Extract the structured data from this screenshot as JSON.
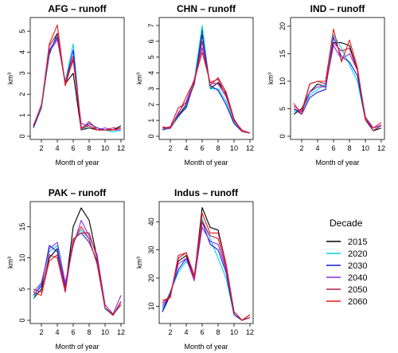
{
  "legend": {
    "title": "Decade",
    "entries": [
      {
        "name": "2015",
        "color": "#000000"
      },
      {
        "name": "2020",
        "color": "#00d5e6"
      },
      {
        "name": "2030",
        "color": "#1a1ad6"
      },
      {
        "name": "2040",
        "color": "#8a2be2"
      },
      {
        "name": "2050",
        "color": "#b31a4d"
      },
      {
        "name": "2060",
        "color": "#e61a1a"
      }
    ]
  },
  "chart_data": [
    {
      "type": "line",
      "title": "AFG – runoff",
      "xlabel": "Month of year",
      "ylabel": "km³",
      "x": [
        1,
        2,
        3,
        4,
        5,
        6,
        7,
        8,
        9,
        10,
        11,
        12
      ],
      "xlim": [
        1,
        12
      ],
      "xticks": [
        2,
        4,
        6,
        8,
        10,
        12
      ],
      "ylim": [
        0,
        5.5
      ],
      "yticks": [
        0,
        1,
        2,
        3,
        4,
        5
      ],
      "series": [
        {
          "name": "2015",
          "values": [
            0.5,
            1.4,
            3.9,
            4.9,
            2.5,
            3.0,
            0.3,
            0.4,
            0.3,
            0.3,
            0.3,
            0.5
          ]
        },
        {
          "name": "2020",
          "values": [
            0.4,
            1.3,
            4.0,
            4.8,
            2.6,
            4.4,
            0.3,
            0.5,
            0.3,
            0.3,
            0.2,
            0.3
          ]
        },
        {
          "name": "2030",
          "values": [
            0.4,
            1.4,
            4.1,
            4.7,
            2.5,
            4.1,
            0.4,
            0.6,
            0.4,
            0.3,
            0.3,
            0.4
          ]
        },
        {
          "name": "2040",
          "values": [
            0.5,
            1.5,
            4.0,
            4.6,
            2.6,
            3.6,
            0.6,
            0.5,
            0.3,
            0.4,
            0.3,
            0.3
          ]
        },
        {
          "name": "2050",
          "values": [
            0.5,
            1.4,
            4.3,
            4.9,
            2.5,
            3.8,
            0.3,
            0.7,
            0.3,
            0.3,
            0.4,
            0.4
          ]
        },
        {
          "name": "2060",
          "values": [
            0.5,
            1.4,
            4.4,
            5.3,
            2.4,
            3.7,
            0.4,
            0.5,
            0.3,
            0.3,
            0.3,
            0.4
          ]
        }
      ]
    },
    {
      "type": "line",
      "title": "CHN – runoff",
      "xlabel": "Month of year",
      "ylabel": "km³",
      "x": [
        1,
        2,
        3,
        4,
        5,
        6,
        7,
        8,
        9,
        10,
        11,
        12
      ],
      "xlim": [
        1,
        12
      ],
      "xticks": [
        2,
        4,
        6,
        8,
        10,
        12
      ],
      "ylim": [
        0,
        7.3
      ],
      "yticks": [
        0,
        1,
        2,
        3,
        4,
        5,
        6,
        7
      ],
      "series": [
        {
          "name": "2015",
          "values": [
            0.4,
            0.5,
            1.3,
            2.0,
            3.3,
            6.8,
            3.0,
            3.4,
            2.7,
            1.0,
            0.3,
            0.2
          ]
        },
        {
          "name": "2020",
          "values": [
            0.4,
            0.5,
            1.2,
            1.9,
            3.5,
            7.0,
            3.0,
            3.0,
            2.2,
            0.9,
            0.3,
            0.2
          ]
        },
        {
          "name": "2030",
          "values": [
            0.5,
            0.6,
            1.3,
            1.8,
            3.4,
            6.4,
            3.2,
            2.9,
            2.0,
            0.8,
            0.3,
            0.2
          ]
        },
        {
          "name": "2040",
          "values": [
            0.5,
            0.5,
            1.5,
            2.2,
            3.6,
            5.6,
            3.4,
            3.3,
            2.5,
            1.0,
            0.3,
            0.2
          ]
        },
        {
          "name": "2050",
          "values": [
            0.4,
            0.6,
            1.8,
            2.1,
            3.3,
            6.0,
            3.2,
            3.7,
            2.8,
            1.1,
            0.3,
            0.2
          ]
        },
        {
          "name": "2060",
          "values": [
            0.6,
            0.5,
            1.4,
            2.5,
            3.5,
            5.3,
            3.4,
            3.6,
            2.6,
            1.0,
            0.4,
            0.2
          ]
        }
      ]
    },
    {
      "type": "line",
      "title": "IND – runoff",
      "xlabel": "Month of year",
      "ylabel": "km³",
      "x": [
        1,
        2,
        3,
        4,
        5,
        6,
        7,
        8,
        9,
        10,
        11,
        12
      ],
      "xlim": [
        1,
        12
      ],
      "xticks": [
        2,
        4,
        6,
        8,
        10,
        12
      ],
      "ylim": [
        0,
        21
      ],
      "yticks": [
        0,
        5,
        10,
        15,
        20
      ],
      "series": [
        {
          "name": "2015",
          "values": [
            4.0,
            5.0,
            8.0,
            9.5,
            9.0,
            17.0,
            17.0,
            16.5,
            12.0,
            3.0,
            1.0,
            1.5
          ]
        },
        {
          "name": "2020",
          "values": [
            4.5,
            4.5,
            7.5,
            8.5,
            9.5,
            18.5,
            16.0,
            13.0,
            10.0,
            3.0,
            1.5,
            2.0
          ]
        },
        {
          "name": "2030",
          "values": [
            5.0,
            4.0,
            7.0,
            8.0,
            8.5,
            18.0,
            14.5,
            13.5,
            11.0,
            3.0,
            1.0,
            2.0
          ]
        },
        {
          "name": "2040",
          "values": [
            5.5,
            4.5,
            8.0,
            9.0,
            9.0,
            16.5,
            14.0,
            15.0,
            12.0,
            3.5,
            1.5,
            2.0
          ]
        },
        {
          "name": "2050",
          "values": [
            5.0,
            4.5,
            9.5,
            10.0,
            9.5,
            17.0,
            15.5,
            16.0,
            12.0,
            3.5,
            1.0,
            2.0
          ]
        },
        {
          "name": "2060",
          "values": [
            6.0,
            4.0,
            9.5,
            10.0,
            10.0,
            19.5,
            13.5,
            17.5,
            12.5,
            3.0,
            1.5,
            2.5
          ]
        }
      ]
    },
    {
      "type": "line",
      "title": "PAK – runoff",
      "xlabel": "Month of year",
      "ylabel": "km³",
      "x": [
        1,
        2,
        3,
        4,
        5,
        6,
        7,
        8,
        9,
        10,
        11,
        12
      ],
      "xlim": [
        1,
        12
      ],
      "xticks": [
        2,
        4,
        6,
        8,
        10,
        12
      ],
      "ylim": [
        0,
        18.5
      ],
      "yticks": [
        0,
        5,
        10,
        15
      ],
      "series": [
        {
          "name": "2015",
          "values": [
            3.5,
            5.0,
            10.0,
            11.5,
            5.0,
            15.0,
            18.0,
            16.0,
            10.0,
            2.0,
            0.8,
            3.0
          ]
        },
        {
          "name": "2020",
          "values": [
            3.5,
            6.0,
            11.0,
            12.0,
            5.0,
            12.5,
            14.5,
            13.0,
            9.0,
            1.8,
            0.8,
            2.5
          ]
        },
        {
          "name": "2030",
          "values": [
            4.0,
            5.5,
            12.0,
            11.0,
            5.5,
            13.0,
            14.0,
            12.5,
            9.5,
            2.0,
            0.8,
            3.0
          ]
        },
        {
          "name": "2040",
          "values": [
            4.5,
            6.0,
            11.5,
            12.5,
            6.0,
            12.0,
            16.0,
            13.5,
            10.5,
            2.5,
            1.0,
            4.0
          ]
        },
        {
          "name": "2050",
          "values": [
            5.0,
            4.5,
            10.5,
            10.0,
            4.5,
            13.0,
            14.0,
            14.0,
            10.0,
            2.0,
            1.0,
            2.5
          ]
        },
        {
          "name": "2060",
          "values": [
            4.5,
            4.0,
            9.5,
            10.5,
            5.0,
            12.5,
            15.0,
            13.0,
            9.0,
            2.0,
            0.8,
            3.0
          ]
        }
      ]
    },
    {
      "type": "line",
      "title": "Indus – runoff",
      "xlabel": "Month of year",
      "ylabel": "km³",
      "x": [
        1,
        2,
        3,
        4,
        5,
        6,
        7,
        8,
        9,
        10,
        11,
        12
      ],
      "xlim": [
        1,
        12
      ],
      "xticks": [
        2,
        4,
        6,
        8,
        10,
        12
      ],
      "ylim": [
        5,
        46
      ],
      "yticks": [
        10,
        20,
        30,
        40
      ],
      "series": [
        {
          "name": "2015",
          "values": [
            8,
            14,
            26,
            28,
            20,
            45,
            38,
            37,
            25,
            8,
            5,
            7
          ]
        },
        {
          "name": "2020",
          "values": [
            9,
            15,
            22,
            26,
            21,
            41,
            34,
            27,
            20,
            7,
            5,
            6
          ]
        },
        {
          "name": "2030",
          "values": [
            8,
            15,
            23,
            27,
            20,
            40,
            32,
            30,
            22,
            7,
            5,
            6
          ]
        },
        {
          "name": "2040",
          "values": [
            10,
            14,
            25,
            27,
            19,
            38,
            33,
            32,
            23,
            8,
            5,
            6
          ]
        },
        {
          "name": "2050",
          "values": [
            11,
            14,
            27,
            29,
            21,
            40,
            35,
            34,
            24,
            8,
            5,
            6
          ]
        },
        {
          "name": "2060",
          "values": [
            12,
            13,
            28,
            29,
            20,
            43,
            36,
            36,
            25,
            8,
            5,
            7
          ]
        }
      ]
    }
  ]
}
